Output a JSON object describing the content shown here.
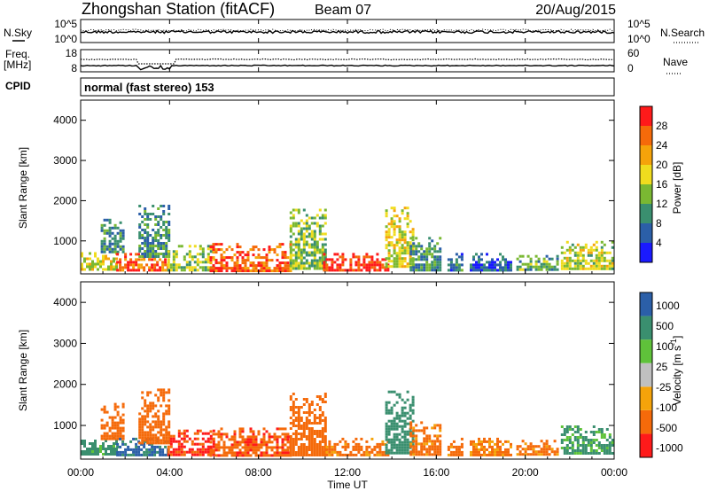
{
  "header": {
    "title": "Zhongshan Station (fitACF)",
    "beam": "Beam 07",
    "date": "20/Aug/2015"
  },
  "noise_panel": {
    "left_label": "N.Sky",
    "left_ticks": [
      "10^5",
      "10^0"
    ],
    "right_label": "N.Search",
    "right_ticks": [
      "10^5",
      "10^0"
    ]
  },
  "freq_panel": {
    "left_label_1": "Freq.",
    "left_label_2": "[MHz]",
    "left_ticks": [
      "18",
      "8"
    ],
    "right_label": "Nave",
    "right_ticks": [
      "60",
      "0"
    ]
  },
  "cpid": {
    "label": "CPID",
    "text": "normal (fast stereo) 153"
  },
  "x_axis": {
    "label": "Time UT",
    "ticks": [
      "00:00",
      "04:00",
      "08:00",
      "12:00",
      "16:00",
      "20:00",
      "00:00"
    ]
  },
  "colors": {
    "power_scale": [
      "#1a1aff",
      "#2b5fa8",
      "#3a8f6f",
      "#7ab832",
      "#f0dc1e",
      "#f5a30a",
      "#f56a0a",
      "#ff1a1a"
    ],
    "velocity_scale": [
      "#ff1a1a",
      "#f56a0a",
      "#f5a30a",
      "#c0c0c0",
      "#5fc23a",
      "#3a8f6f",
      "#2b5fa8"
    ]
  },
  "chart_data": [
    {
      "type": "heatmap",
      "name": "Power",
      "ylabel": "Slant Range [km]",
      "xlabel": "",
      "y_ticks": [
        "4000",
        "3000",
        "2000",
        "1000"
      ],
      "xlim": [
        0,
        24
      ],
      "ylim": [
        180,
        4500
      ],
      "colorbar": {
        "label": "Power [dB]",
        "ticks": [
          "28",
          "24",
          "20",
          "16",
          "12",
          "8",
          "4"
        ],
        "range": [
          0,
          32
        ]
      },
      "patches": [
        {
          "t": [
            0.0,
            1.6
          ],
          "r": [
            300,
            720
          ],
          "level": 18
        },
        {
          "t": [
            0.9,
            1.9
          ],
          "r": [
            700,
            1550
          ],
          "level": 9
        },
        {
          "t": [
            1.6,
            3.9
          ],
          "r": [
            250,
            700
          ],
          "level": 27
        },
        {
          "t": [
            2.6,
            4.0
          ],
          "r": [
            600,
            1900
          ],
          "level": 10
        },
        {
          "t": [
            3.9,
            6.0
          ],
          "r": [
            260,
            900
          ],
          "level": 15
        },
        {
          "t": [
            5.8,
            9.5
          ],
          "r": [
            280,
            950
          ],
          "level": 26
        },
        {
          "t": [
            9.4,
            11.0
          ],
          "r": [
            300,
            1800
          ],
          "level": 14
        },
        {
          "t": [
            10.9,
            13.8
          ],
          "r": [
            250,
            700
          ],
          "level": 29
        },
        {
          "t": [
            13.7,
            15.0
          ],
          "r": [
            350,
            1850
          ],
          "level": 18
        },
        {
          "t": [
            14.8,
            16.2
          ],
          "r": [
            300,
            1100
          ],
          "level": 10
        },
        {
          "t": [
            16.5,
            17.2
          ],
          "r": [
            300,
            700
          ],
          "level": 8
        },
        {
          "t": [
            17.5,
            19.4
          ],
          "r": [
            300,
            700
          ],
          "level": 6
        },
        {
          "t": [
            19.6,
            21.5
          ],
          "r": [
            300,
            650
          ],
          "level": 12
        },
        {
          "t": [
            21.6,
            23.9
          ],
          "r": [
            300,
            1000
          ],
          "level": 16
        }
      ]
    },
    {
      "type": "heatmap",
      "name": "Velocity",
      "ylabel": "Slant Range [km]",
      "xlabel": "Time UT",
      "y_ticks": [
        "4000",
        "3000",
        "2000",
        "1000"
      ],
      "xlim": [
        0,
        24
      ],
      "ylim": [
        180,
        4500
      ],
      "colorbar": {
        "label": "Velocity [m s^-1]",
        "ticks": [
          "1000",
          "500",
          "100",
          "25",
          "-25",
          "-100",
          "-500",
          "-1000"
        ],
        "range": [
          -1250,
          1250
        ]
      },
      "patches": [
        {
          "t": [
            0.0,
            1.6
          ],
          "r": [
            300,
            720
          ],
          "level": 150
        },
        {
          "t": [
            0.9,
            1.9
          ],
          "r": [
            700,
            1550
          ],
          "level": -350
        },
        {
          "t": [
            1.6,
            3.9
          ],
          "r": [
            250,
            700
          ],
          "level": 600
        },
        {
          "t": [
            2.6,
            4.0
          ],
          "r": [
            600,
            1900
          ],
          "level": -200
        },
        {
          "t": [
            3.9,
            6.0
          ],
          "r": [
            260,
            900
          ],
          "level": -600
        },
        {
          "t": [
            5.8,
            9.5
          ],
          "r": [
            280,
            950
          ],
          "level": -400
        },
        {
          "t": [
            9.4,
            11.0
          ],
          "r": [
            300,
            1800
          ],
          "level": -250
        },
        {
          "t": [
            10.9,
            13.8
          ],
          "r": [
            250,
            700
          ],
          "level": -150
        },
        {
          "t": [
            13.7,
            15.0
          ],
          "r": [
            350,
            1850
          ],
          "level": 200
        },
        {
          "t": [
            14.8,
            16.2
          ],
          "r": [
            300,
            1100
          ],
          "level": -150
        },
        {
          "t": [
            16.5,
            17.2
          ],
          "r": [
            300,
            700
          ],
          "level": -150
        },
        {
          "t": [
            17.5,
            19.4
          ],
          "r": [
            300,
            700
          ],
          "level": -120
        },
        {
          "t": [
            19.6,
            21.5
          ],
          "r": [
            300,
            650
          ],
          "level": -130
        },
        {
          "t": [
            21.6,
            23.9
          ],
          "r": [
            300,
            1000
          ],
          "level": 120
        }
      ]
    }
  ]
}
